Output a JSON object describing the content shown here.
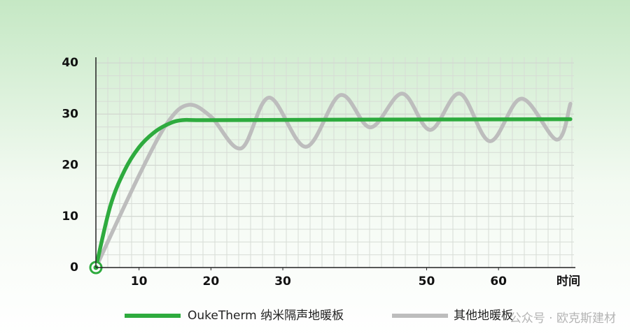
{
  "chart_data": {
    "type": "line",
    "x_label": "时间",
    "xlim": [
      4,
      70.5
    ],
    "xticks": [
      10,
      20,
      30,
      50,
      60
    ],
    "ylim": [
      0,
      40
    ],
    "yticks": [
      0,
      10,
      20,
      30,
      40
    ],
    "grid": true,
    "series": [
      {
        "name": "OukeTherm 纳米隔声地暖板",
        "color": "#2eab3e",
        "x": [
          4,
          6,
          8,
          10,
          12,
          14,
          16,
          20,
          40,
          70
        ],
        "values": [
          0,
          12,
          19,
          23.5,
          26.3,
          28,
          28.8,
          28.8,
          28.9,
          29
        ]
      },
      {
        "name": "其他地暖板",
        "color": "#bdbdbd",
        "x": [
          4,
          10,
          14,
          16.9,
          20,
          24.2,
          28.1,
          33.2,
          38,
          42.2,
          46.6,
          50.5,
          54.6,
          58.8,
          63.2,
          68.1,
          70
        ],
        "values": [
          0,
          18,
          28.4,
          31.8,
          29.5,
          23.3,
          33.2,
          23.6,
          33.7,
          27.4,
          34,
          26.9,
          34,
          24.7,
          33,
          25,
          32
        ]
      }
    ],
    "watermark": "公众号 · 欧克斯建材"
  }
}
